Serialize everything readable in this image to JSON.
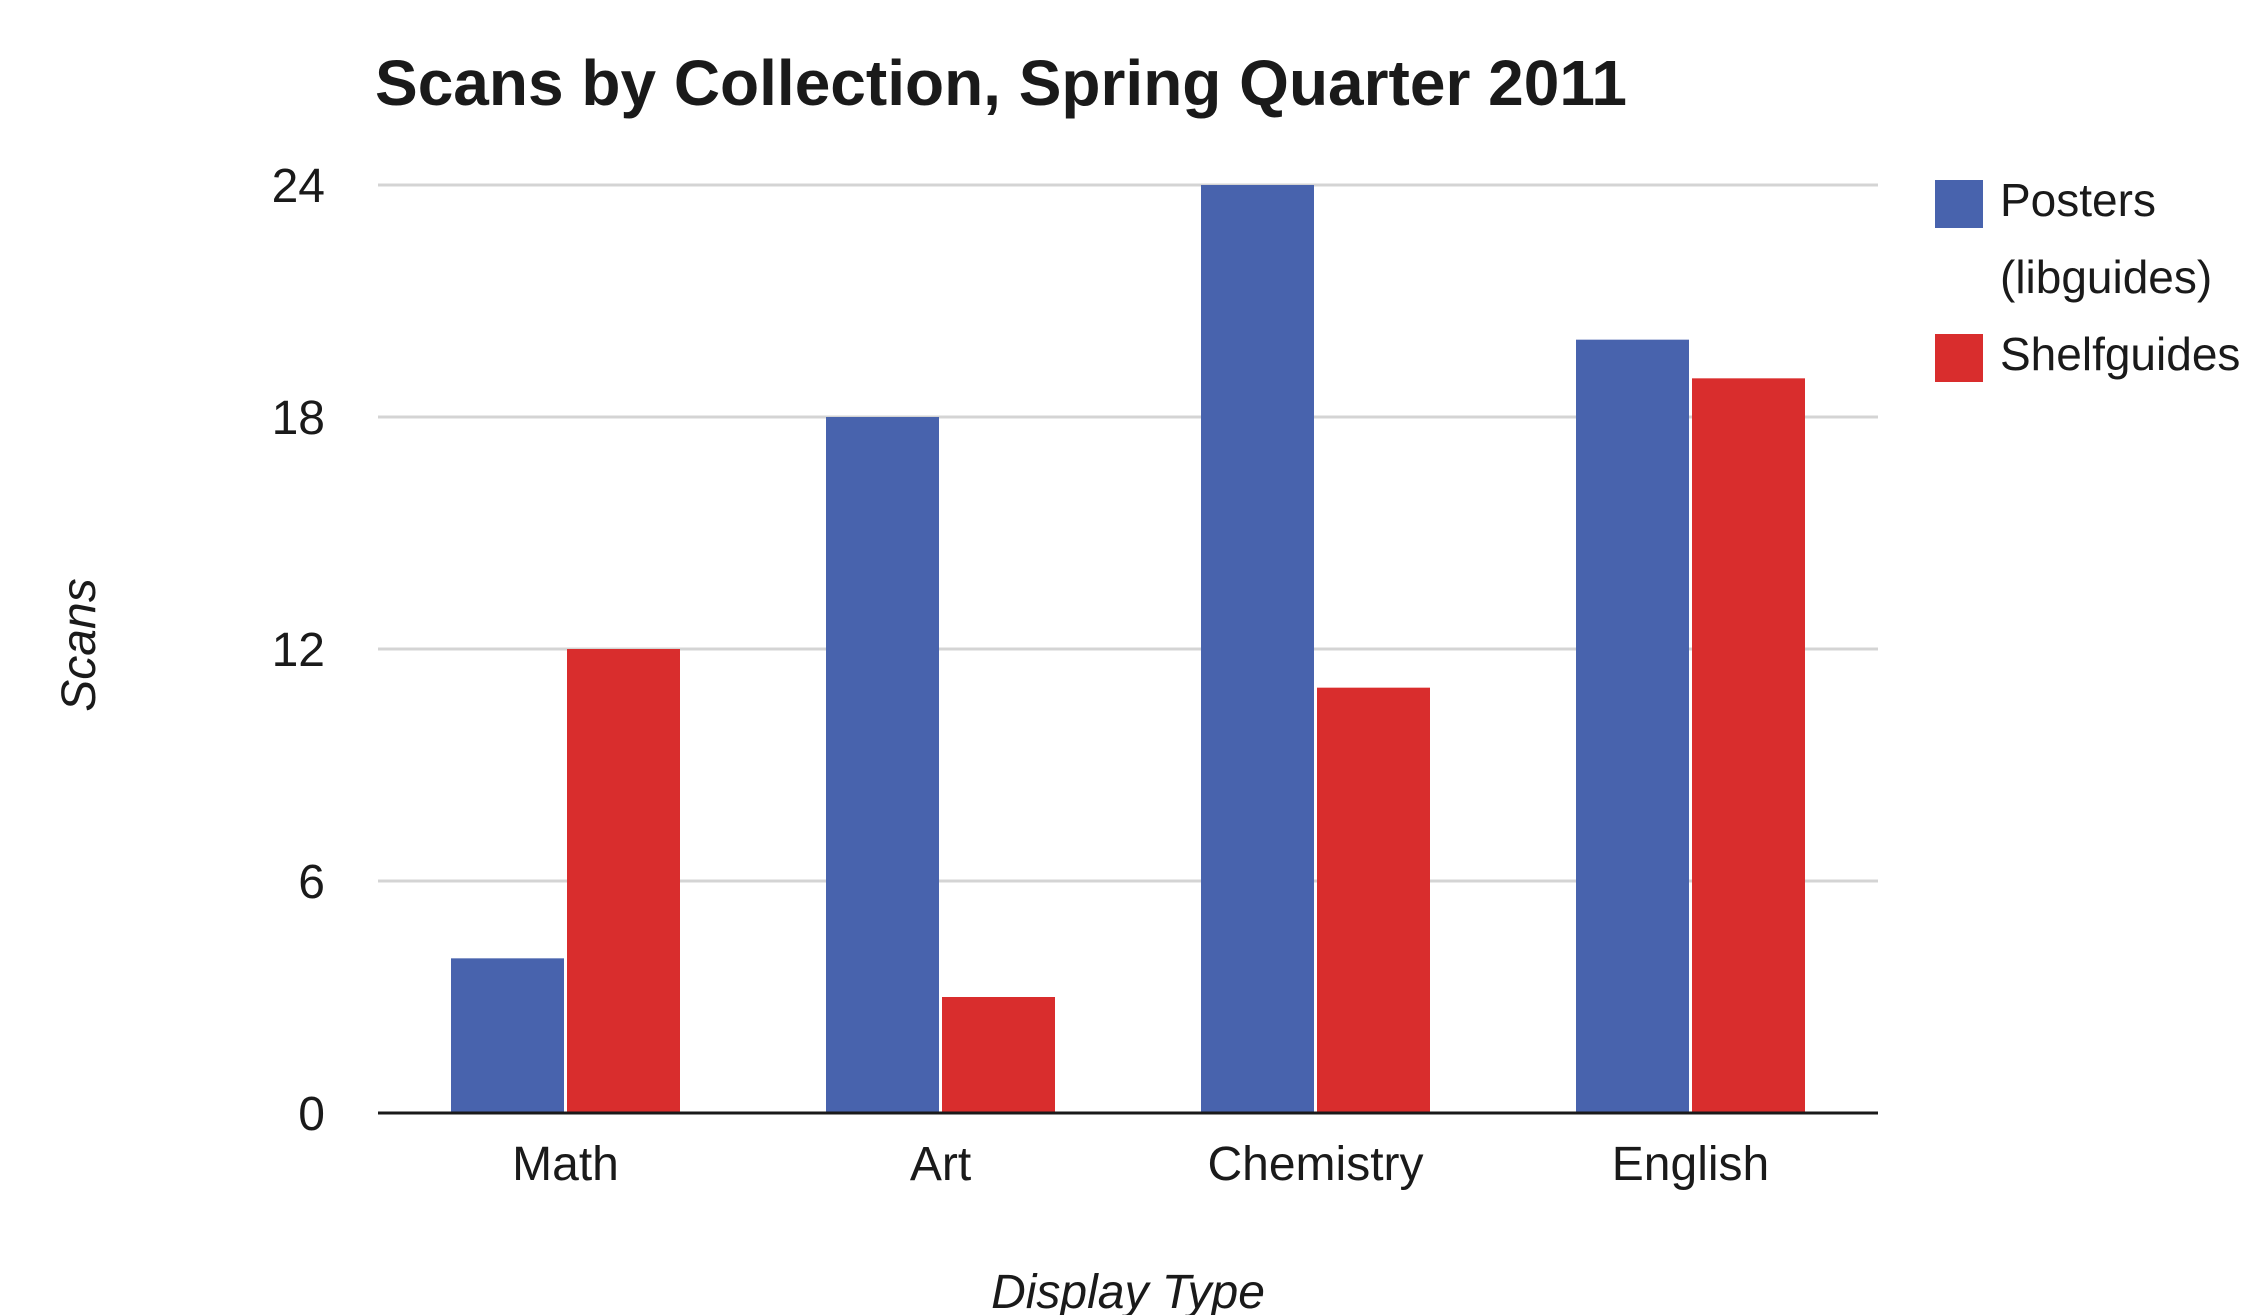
{
  "chart_data": {
    "type": "bar",
    "title": "Scans by Collection, Spring Quarter 2011",
    "xlabel": "Display Type",
    "ylabel": "Scans",
    "categories": [
      "Math",
      "Art",
      "Chemistry",
      "English"
    ],
    "series": [
      {
        "name": "Posters (libguides)",
        "legend_lines": [
          "Posters",
          "(libguides)"
        ],
        "color": "#4863ad",
        "values": [
          4,
          18,
          24,
          20
        ]
      },
      {
        "name": "Shelfguides",
        "legend_lines": [
          "Shelfguides"
        ],
        "color": "#d92d2d",
        "values": [
          12,
          3,
          11,
          19
        ]
      }
    ],
    "ylim": [
      0,
      24
    ],
    "yticks": [
      0,
      6,
      12,
      18,
      24
    ],
    "grid": true,
    "legend_position": "top-right"
  }
}
